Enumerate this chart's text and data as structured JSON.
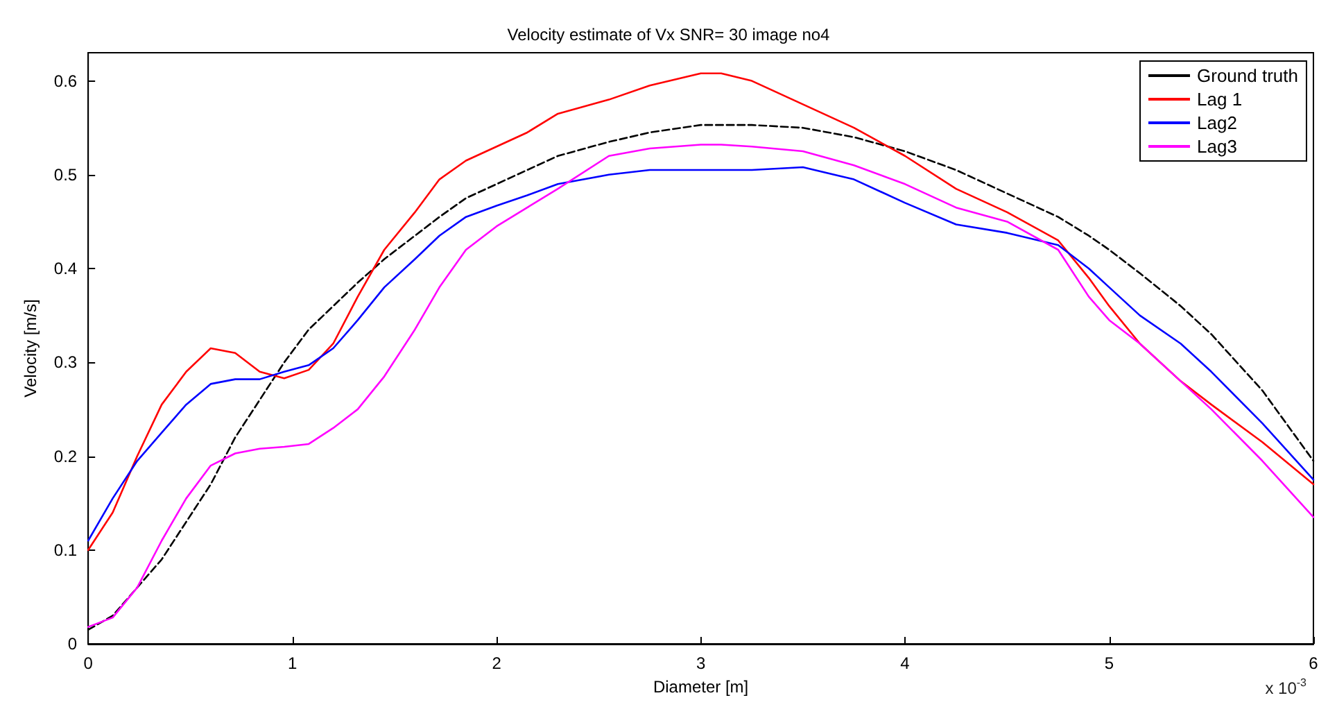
{
  "chart_data": {
    "type": "line",
    "title": "Velocity estimate of Vx SNR= 30 image no4",
    "xlabel": "Diameter [m]",
    "ylabel": "Velocity [m/s]",
    "annotations": [
      "x 10$^{-3}$"
    ],
    "x": [
      0,
      0.12,
      0.24,
      0.36,
      0.48,
      0.6,
      0.72,
      0.84,
      0.96,
      1.08,
      1.2,
      1.32,
      1.45,
      1.6,
      1.72,
      1.85,
      2.0,
      2.15,
      2.3,
      2.55,
      2.75,
      3.0,
      3.1,
      3.25,
      3.5,
      3.75,
      4.0,
      4.25,
      4.5,
      4.75,
      4.9,
      5.0,
      5.15,
      5.35,
      5.5,
      5.75,
      6.0
    ],
    "series": [
      {
        "name": "Ground truth",
        "color": "#000000",
        "line_style": "dashed",
        "values": [
          0.015,
          0.03,
          0.06,
          0.09,
          0.13,
          0.17,
          0.22,
          0.26,
          0.3,
          0.335,
          0.36,
          0.385,
          0.41,
          0.435,
          0.455,
          0.475,
          0.49,
          0.505,
          0.52,
          0.535,
          0.545,
          0.553,
          0.553,
          0.553,
          0.55,
          0.54,
          0.525,
          0.505,
          0.48,
          0.455,
          0.435,
          0.42,
          0.395,
          0.36,
          0.33,
          0.27,
          0.195
        ]
      },
      {
        "name": "Lag 1",
        "color": "#ff0000",
        "line_style": "solid",
        "values": [
          0.1,
          0.14,
          0.2,
          0.255,
          0.29,
          0.315,
          0.31,
          0.29,
          0.283,
          0.292,
          0.32,
          0.37,
          0.42,
          0.46,
          0.495,
          0.515,
          0.53,
          0.545,
          0.565,
          0.58,
          0.595,
          0.608,
          0.608,
          0.6,
          0.575,
          0.55,
          0.52,
          0.485,
          0.46,
          0.43,
          0.39,
          0.36,
          0.32,
          0.28,
          0.255,
          0.215,
          0.17
        ]
      },
      {
        "name": "Lag2",
        "color": "#0000ff",
        "line_style": "solid",
        "values": [
          0.11,
          0.155,
          0.195,
          0.225,
          0.255,
          0.277,
          0.282,
          0.282,
          0.29,
          0.297,
          0.315,
          0.345,
          0.38,
          0.41,
          0.435,
          0.455,
          0.467,
          0.478,
          0.49,
          0.5,
          0.505,
          0.505,
          0.505,
          0.505,
          0.508,
          0.495,
          0.47,
          0.447,
          0.438,
          0.425,
          0.4,
          0.38,
          0.35,
          0.32,
          0.29,
          0.235,
          0.175
        ]
      },
      {
        "name": "Lag3",
        "color": "#ff00ff",
        "line_style": "solid",
        "values": [
          0.018,
          0.028,
          0.06,
          0.11,
          0.155,
          0.19,
          0.203,
          0.208,
          0.21,
          0.213,
          0.23,
          0.25,
          0.285,
          0.335,
          0.38,
          0.42,
          0.445,
          0.465,
          0.485,
          0.52,
          0.528,
          0.532,
          0.532,
          0.53,
          0.525,
          0.51,
          0.49,
          0.465,
          0.45,
          0.42,
          0.37,
          0.345,
          0.32,
          0.28,
          0.25,
          0.195,
          0.135
        ]
      }
    ],
    "xlim": [
      0,
      6
    ],
    "xticks": [
      0,
      1,
      2,
      3,
      4,
      5,
      6
    ],
    "ylim": [
      0,
      0.63
    ],
    "yticks": [
      0,
      0.1,
      0.2,
      0.3,
      0.4,
      0.5,
      0.6
    ],
    "grid": false,
    "legend": "top right",
    "marker": "none"
  }
}
